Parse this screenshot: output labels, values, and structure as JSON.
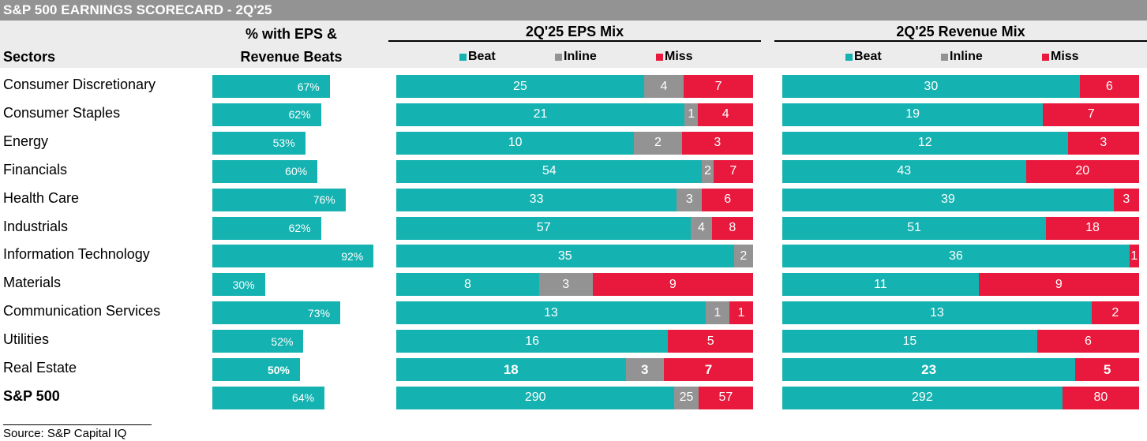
{
  "title": "S&P 500 EARNINGS SCORECARD - 2Q'25",
  "headers": {
    "sectors": "Sectors",
    "pct_line1": "% with EPS &",
    "pct_line2": "Revenue Beats",
    "eps_mix": "2Q'25 EPS Mix",
    "rev_mix": "2Q'25 Revenue Mix"
  },
  "legend": [
    {
      "label": "Beat",
      "color": "#14b2b0"
    },
    {
      "label": "Inline",
      "color": "#939393"
    },
    {
      "label": "Miss",
      "color": "#e8193c"
    }
  ],
  "colors": {
    "beat": "#14b2b0",
    "inline": "#939393",
    "miss": "#e8193c"
  },
  "chart_data": {
    "type": "bar",
    "title": "S&P 500 EARNINGS SCORECARD - 2Q'25",
    "categories": [
      "Consumer Discretionary",
      "Consumer Staples",
      "Energy",
      "Financials",
      "Health Care",
      "Industrials",
      "Information Technology",
      "Materials",
      "Communication Services",
      "Utilities",
      "Real Estate",
      "S&P 500"
    ],
    "pct_beats": {
      "name": "% with EPS & Revenue Beats",
      "values": [
        67,
        62,
        53,
        60,
        76,
        62,
        92,
        30,
        73,
        52,
        50,
        64
      ],
      "labels": [
        "67%",
        "62%",
        "53%",
        "60%",
        "76%",
        "62%",
        "92%",
        "30%",
        "73%",
        "52%",
        "50%",
        "64%"
      ],
      "xlim": [
        0,
        100
      ]
    },
    "eps_mix": {
      "name": "2Q'25 EPS Mix",
      "series": [
        {
          "name": "Beat",
          "values": [
            25,
            21,
            10,
            54,
            33,
            57,
            35,
            8,
            13,
            16,
            18,
            290
          ]
        },
        {
          "name": "Inline",
          "values": [
            4,
            1,
            2,
            2,
            3,
            4,
            2,
            3,
            1,
            0,
            3,
            25
          ]
        },
        {
          "name": "Miss",
          "values": [
            7,
            4,
            3,
            7,
            6,
            8,
            0,
            9,
            1,
            5,
            7,
            57
          ]
        }
      ]
    },
    "revenue_mix": {
      "name": "2Q'25 Revenue Mix",
      "series": [
        {
          "name": "Beat",
          "values": [
            30,
            19,
            12,
            43,
            39,
            51,
            36,
            11,
            13,
            15,
            23,
            292
          ]
        },
        {
          "name": "Inline",
          "values": [
            0,
            0,
            0,
            0,
            0,
            0,
            0,
            0,
            0,
            0,
            0,
            0
          ]
        },
        {
          "name": "Miss",
          "values": [
            6,
            7,
            3,
            20,
            3,
            18,
            1,
            9,
            2,
            6,
            5,
            80
          ]
        }
      ]
    },
    "bold_rows": [
      "Real Estate"
    ],
    "bold_label_rows": [
      "S&P 500"
    ]
  },
  "source": "Source: S&P Capital IQ"
}
